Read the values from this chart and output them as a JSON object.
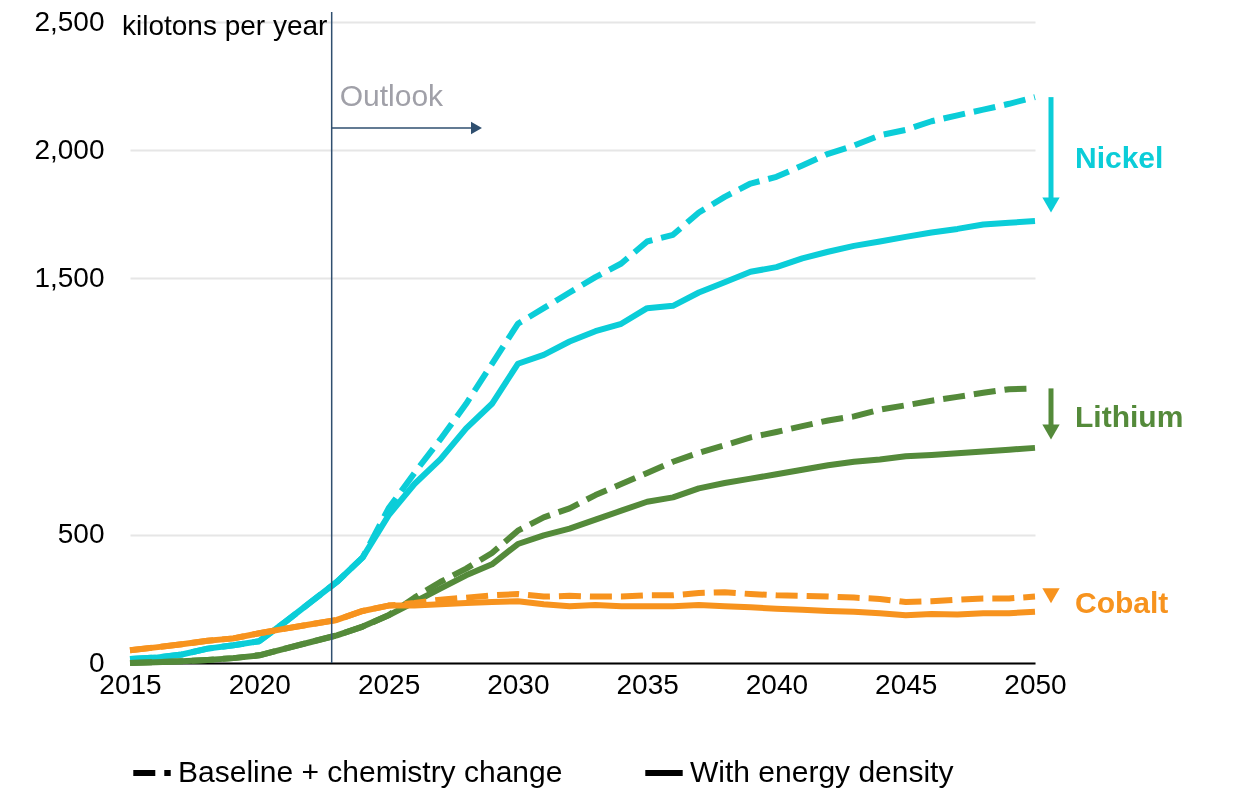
{
  "chart_data": {
    "type": "line",
    "ylabel": "kilotons per year",
    "x": [
      2015,
      2016,
      2017,
      2018,
      2019,
      2020,
      2021,
      2022,
      2023,
      2024,
      2025,
      2026,
      2027,
      2028,
      2029,
      2030,
      2031,
      2032,
      2033,
      2034,
      2035,
      2036,
      2037,
      2038,
      2039,
      2040,
      2041,
      2042,
      2043,
      2044,
      2045,
      2046,
      2047,
      2048,
      2049,
      2050
    ],
    "xlim": [
      2015,
      2050
    ],
    "xticks": [
      2015,
      2020,
      2025,
      2030,
      2035,
      2040,
      2045,
      2050
    ],
    "ylim": [
      0,
      2500
    ],
    "yticks": [
      0,
      500,
      {
        "value": 1500,
        "label": "1,500"
      },
      {
        "value": 2000,
        "label": "2,000"
      },
      {
        "value": 2500,
        "label": "2,500"
      }
    ],
    "grid": "y",
    "legend": "bottom",
    "annotations": [
      "Baseline + chemistry change",
      "With energy density"
    ],
    "ref_lines": [
      {
        "axis": "x",
        "value": 2022.8,
        "label": "Outlook",
        "color": "#2f4f6f"
      }
    ],
    "series": [
      {
        "name": "Nickel",
        "color": "#0bcdd8",
        "line_style": "dashed",
        "values": [
          16,
          21,
          33,
          56,
          69,
          85,
          160,
          238,
          316,
          412,
          603,
          741,
          872,
          1011,
          1167,
          1323,
          1384,
          1445,
          1505,
          1558,
          1644,
          1670,
          1757,
          1818,
          1870,
          1896,
          1940,
          1986,
          2018,
          2058,
          2079,
          2113,
          2136,
          2158,
          2181,
          2207
        ]
      },
      {
        "color": "#0bcdd8",
        "line_style": "solid",
        "values": [
          16,
          21,
          33,
          56,
          69,
          85,
          160,
          238,
          316,
          412,
          576,
          698,
          794,
          915,
          1011,
          1167,
          1202,
          1254,
          1294,
          1323,
          1384,
          1393,
          1445,
          1485,
          1526,
          1544,
          1578,
          1604,
          1627,
          1644,
          1662,
          1679,
          1693,
          1710,
          1717,
          1724
        ]
      },
      {
        "name": "Lithium",
        "color": "#548a3a",
        "line_style": "dashed",
        "values": [
          0,
          3,
          7,
          12,
          19,
          30,
          56,
          82,
          108,
          142,
          186,
          255,
          316,
          368,
          429,
          516,
          568,
          603,
          655,
          698,
          741,
          785,
          820,
          849,
          880,
          901,
          924,
          946,
          962,
          988,
          1005,
          1023,
          1038,
          1054,
          1068,
          1071
        ]
      },
      {
        "color": "#548a3a",
        "line_style": "solid",
        "values": [
          0,
          3,
          7,
          12,
          19,
          30,
          56,
          82,
          108,
          142,
          186,
          238,
          290,
          342,
          385,
          464,
          498,
          524,
          559,
          594,
          629,
          646,
          681,
          702,
          719,
          736,
          754,
          771,
          785,
          794,
          806,
          811,
          818,
          825,
          832,
          839
        ]
      },
      {
        "name": "Cobalt",
        "color": "#f7931e",
        "line_style": "dashed",
        "values": [
          50,
          61,
          73,
          87,
          96,
          116,
          134,
          151,
          168,
          203,
          224,
          234,
          247,
          255,
          264,
          269,
          259,
          262,
          259,
          259,
          264,
          264,
          273,
          276,
          269,
          264,
          262,
          259,
          255,
          250,
          238,
          241,
          247,
          252,
          252,
          259
        ]
      },
      {
        "color": "#f7931e",
        "line_style": "solid",
        "values": [
          50,
          61,
          73,
          87,
          96,
          116,
          134,
          151,
          168,
          203,
          224,
          224,
          229,
          234,
          238,
          241,
          229,
          221,
          226,
          221,
          221,
          221,
          226,
          221,
          217,
          212,
          208,
          203,
          200,
          194,
          186,
          191,
          189,
          194,
          194,
          200
        ]
      }
    ]
  }
}
